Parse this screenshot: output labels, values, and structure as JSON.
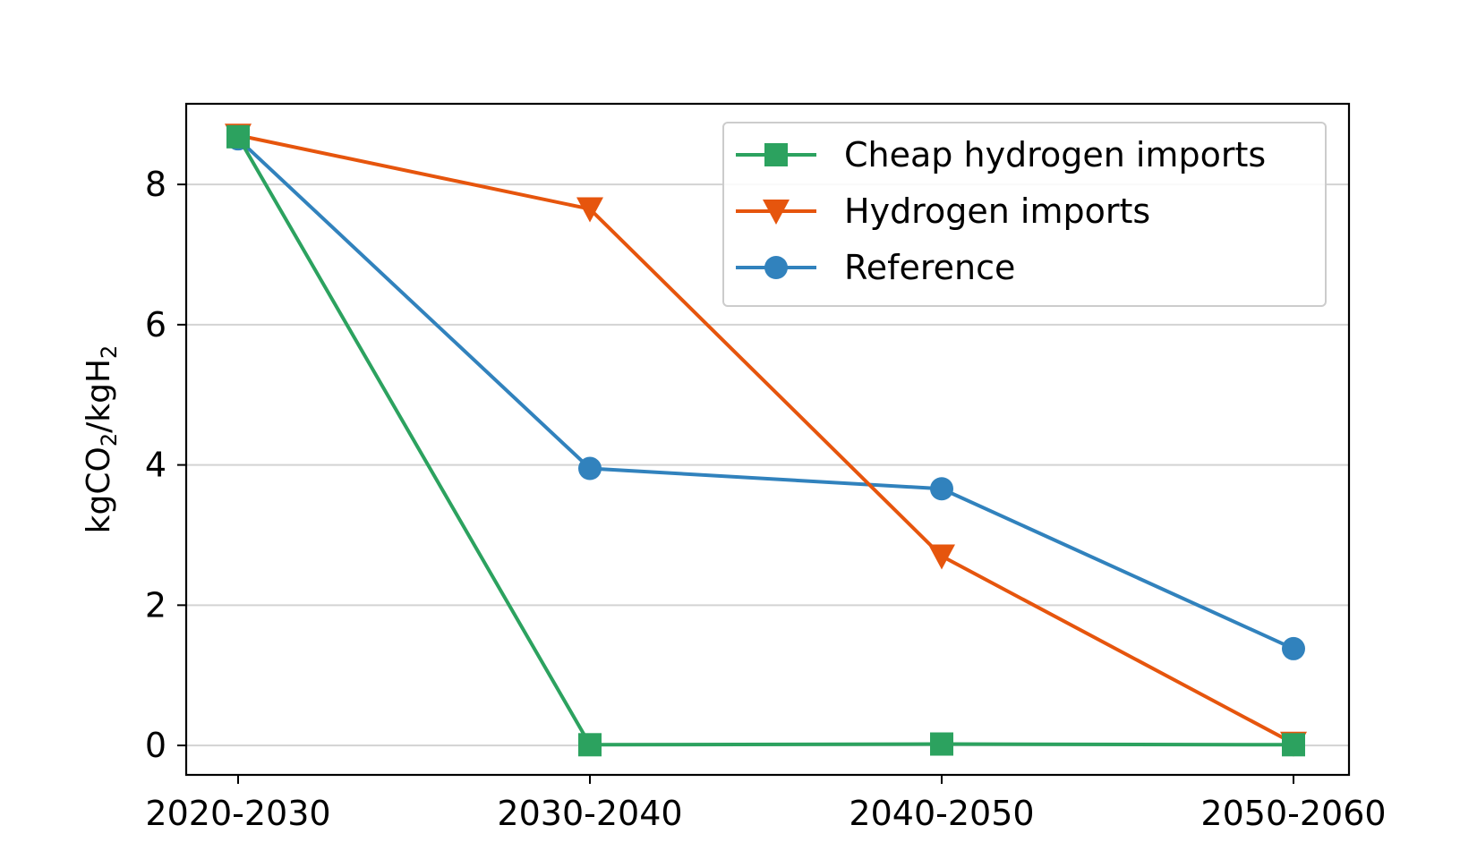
{
  "chart_data": {
    "type": "line",
    "categories": [
      "2020-2030",
      "2030-2040",
      "2040-2050",
      "2050-2060"
    ],
    "series": [
      {
        "name": "Cheap hydrogen imports",
        "values": [
          8.68,
          0.01,
          0.02,
          0.01
        ],
        "color": "#2ca25f",
        "marker": "square"
      },
      {
        "name": "Hydrogen imports",
        "values": [
          8.7,
          7.65,
          2.7,
          0.03
        ],
        "color": "#e6550d",
        "marker": "triangle-down"
      },
      {
        "name": "Reference",
        "values": [
          8.65,
          3.95,
          3.66,
          1.38
        ],
        "color": "#3182bd",
        "marker": "circle"
      }
    ],
    "ylabel": {
      "base": "kgCO",
      "sub1": "2",
      "mid": "/kgH",
      "sub2": "2"
    },
    "ylim": [
      -0.42,
      9.15
    ],
    "yticks": [
      0,
      2,
      4,
      6,
      8
    ],
    "grid": "y",
    "legend_position": "top-right"
  }
}
